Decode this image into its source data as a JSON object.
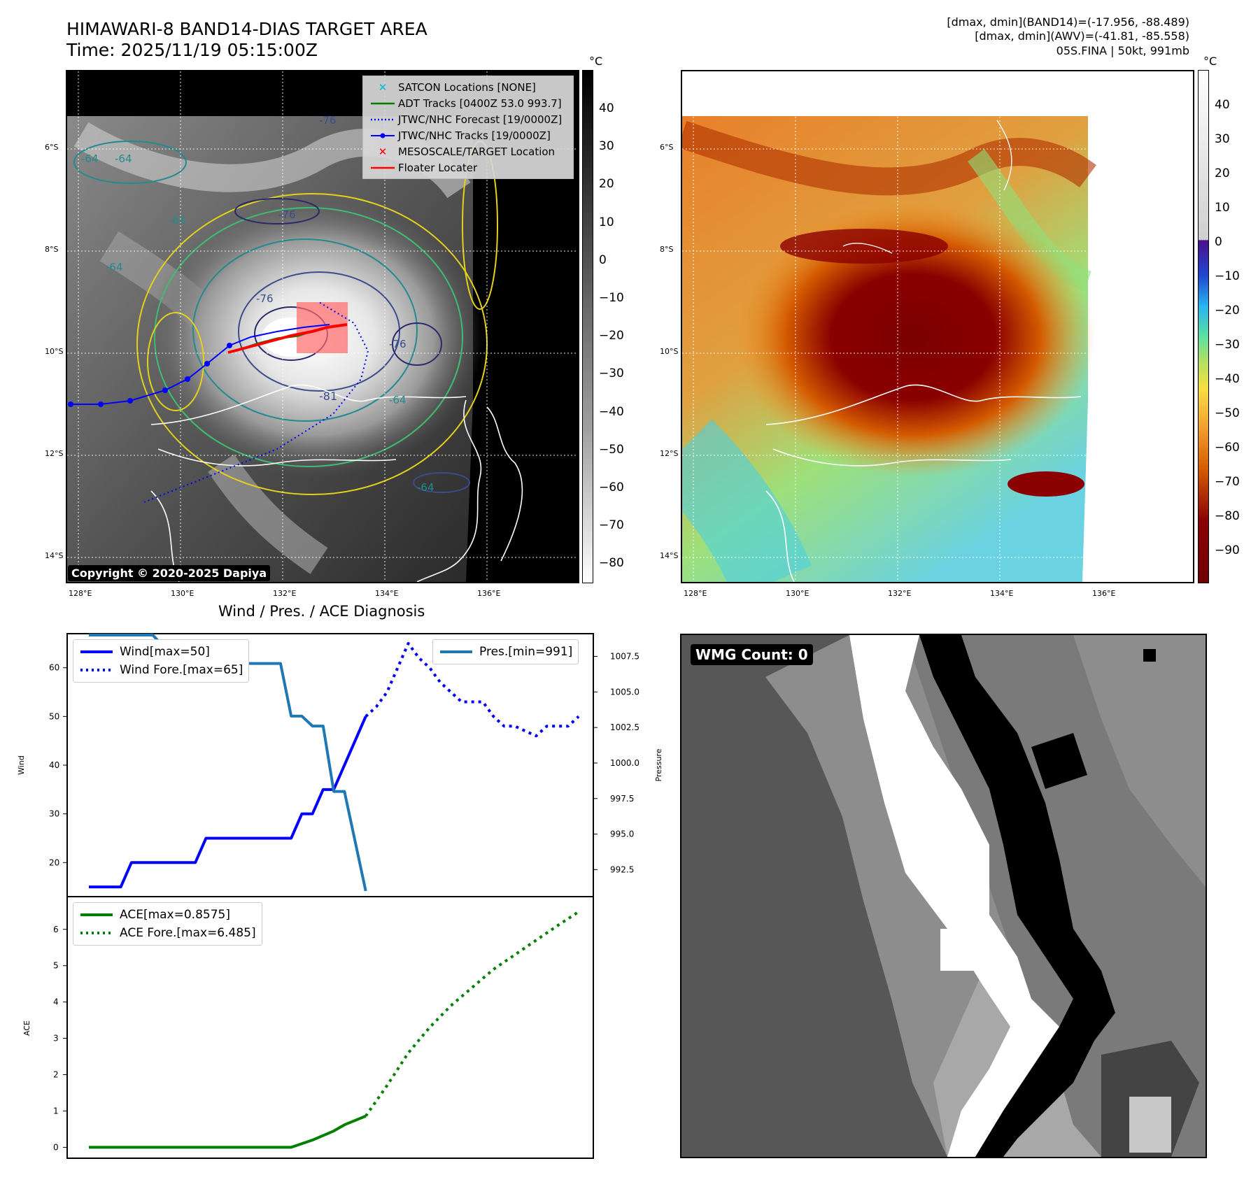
{
  "header": {
    "title_line1": "HIMAWARI-8 BAND14-DIAS TARGET AREA",
    "title_line2": "Time: 2025/11/19 05:15:00Z",
    "meta_line1": "[dmax, dmin](BAND14)=(-17.956, -88.489)",
    "meta_line2": "[dmax, dmin](AWV)=(-41.81, -85.558)",
    "meta_line3": "05S.FINA | 50kt, 991mb"
  },
  "map_axes": {
    "lon_labels": [
      "128°E",
      "130°E",
      "132°E",
      "134°E",
      "136°E"
    ],
    "lat_labels": [
      "6°S",
      "8°S",
      "10°S",
      "12°S",
      "14°S"
    ]
  },
  "ir_colorbar": {
    "unit": "°C",
    "ticks": [
      "40",
      "30",
      "20",
      "10",
      "0",
      "−10",
      "−20",
      "−30",
      "−40",
      "−50",
      "−60",
      "−70",
      "−80"
    ]
  },
  "awv_colorbar": {
    "unit": "°C",
    "ticks": [
      "40",
      "30",
      "20",
      "10",
      "0",
      "−10",
      "−20",
      "−30",
      "−40",
      "−50",
      "−60",
      "−70",
      "−80",
      "−90"
    ]
  },
  "legend": {
    "items": [
      {
        "label": "SATCON Locations [NONE]",
        "color": "#00bcd4",
        "symbol": "x"
      },
      {
        "label": "ADT Tracks [0400Z 53.0 993.7]",
        "color": "#008000",
        "symbol": "line"
      },
      {
        "label": "JTWC/NHC Forecast [19/0000Z]",
        "color": "#0000ff",
        "symbol": "dotted"
      },
      {
        "label": "JTWC/NHC Tracks [19/0000Z]",
        "color": "#0000ff",
        "symbol": "dotline"
      },
      {
        "label": "MESOSCALE/TARGET Location",
        "color": "#ff0000",
        "symbol": "x"
      },
      {
        "label": "Floater Locater",
        "color": "#ff0000",
        "symbol": "line"
      }
    ]
  },
  "contour_labels": [
    "-76",
    "-64",
    "-64",
    "-64",
    "-76",
    "-76",
    "-81",
    "-64",
    "-64",
    "-64",
    "-76"
  ],
  "copyright": "Copyright © 2020-2025 Dapiya",
  "wmg": {
    "label": "WMG Count: 0"
  },
  "chart_data": [
    {
      "type": "line",
      "title": "Wind / Pres. / ACE Diagnosis",
      "ylabel": "Wind",
      "ylabel_right": "Pressure",
      "ylim": [
        13,
        67
      ],
      "ylim_right": [
        990.6,
        1009.1
      ],
      "yticks": [
        "20",
        "30",
        "40",
        "50",
        "60"
      ],
      "yticks_right": [
        "992.5",
        "995.0",
        "997.5",
        "1000.0",
        "1002.5",
        "1005.0",
        "1007.5"
      ],
      "series": [
        {
          "name": "Wind[max=50]",
          "style": "solid",
          "color": "#0000ff",
          "x": [
            0,
            3,
            4,
            10,
            11,
            19,
            20,
            21,
            22,
            23,
            24,
            25,
            26
          ],
          "y": [
            15,
            15,
            20,
            20,
            25,
            25,
            30,
            30,
            35,
            35,
            40,
            45,
            50
          ]
        },
        {
          "name": "Wind Fore.[max=65]",
          "style": "dotted",
          "color": "#0000ff",
          "x": [
            26,
            27,
            28,
            29,
            30,
            31,
            32,
            33,
            34,
            35,
            36,
            37,
            38,
            39,
            40,
            41,
            42,
            43,
            44,
            45,
            46
          ],
          "y": [
            50,
            52,
            55,
            60,
            65,
            62,
            60,
            57,
            55,
            53,
            53,
            53,
            50,
            48,
            48,
            47,
            46,
            48,
            48,
            48,
            50
          ]
        },
        {
          "name": "Pres.[min=991]",
          "style": "solid",
          "color": "#1f77b4",
          "axis": "right",
          "x": [
            0,
            6,
            7,
            9,
            10,
            13,
            14,
            18,
            19,
            20,
            21,
            22,
            23,
            24,
            25,
            26
          ],
          "y": [
            1009,
            1009,
            1008.2,
            1008.2,
            1007.6,
            1007.6,
            1007,
            1007,
            1003.3,
            1003.3,
            1002.6,
            1002.6,
            998,
            998,
            994.5,
            991
          ]
        }
      ]
    },
    {
      "type": "line",
      "ylabel": "ACE",
      "ylim": [
        -0.3,
        6.9
      ],
      "yticks": [
        "0",
        "1",
        "2",
        "3",
        "4",
        "5",
        "6"
      ],
      "series": [
        {
          "name": "ACE[max=0.8575]",
          "style": "solid",
          "color": "#008000",
          "x": [
            0,
            19,
            21,
            23,
            24,
            26
          ],
          "y": [
            0,
            0,
            0.2,
            0.45,
            0.62,
            0.86
          ]
        },
        {
          "name": "ACE Fore.[max=6.485]",
          "style": "dotted",
          "color": "#008000",
          "x": [
            26,
            28,
            30,
            32,
            34,
            36,
            38,
            40,
            42,
            44,
            46
          ],
          "y": [
            0.86,
            1.7,
            2.6,
            3.3,
            3.9,
            4.4,
            4.9,
            5.3,
            5.7,
            6.1,
            6.485
          ]
        }
      ]
    }
  ]
}
